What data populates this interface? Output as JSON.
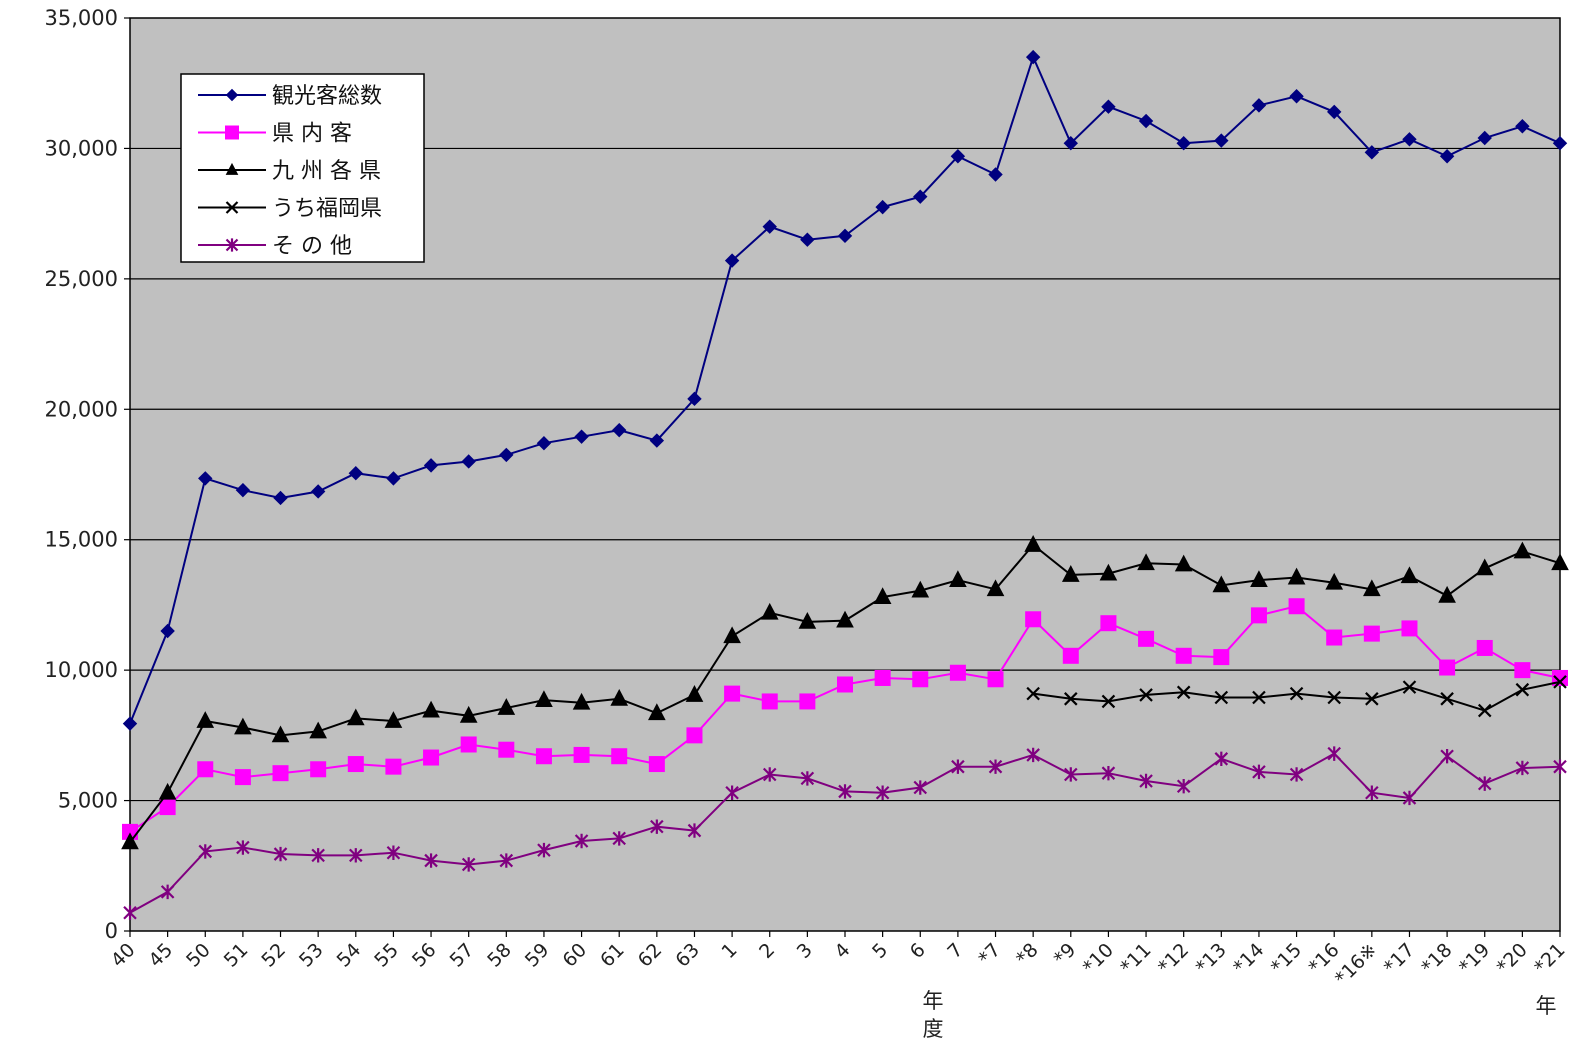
{
  "chart_data": {
    "type": "line",
    "title": "",
    "xlabel": "",
    "ylabel": "",
    "ylim": [
      0,
      35000
    ],
    "yticks": [
      0,
      5000,
      10000,
      15000,
      20000,
      25000,
      30000,
      35000
    ],
    "ytick_labels": [
      "0",
      "5,000",
      "10,000",
      "15,000",
      "20,000",
      "25,000",
      "30,000",
      "35,000"
    ],
    "grid": true,
    "legend_position": "top-left",
    "x_unit_labels": [
      "年度",
      "年"
    ],
    "categories": [
      "40",
      "45",
      "50",
      "51",
      "52",
      "53",
      "54",
      "55",
      "56",
      "57",
      "58",
      "59",
      "60",
      "61",
      "62",
      "63",
      "1",
      "2",
      "3",
      "4",
      "5",
      "6",
      "7",
      "*7",
      "*8",
      "*9",
      "*10",
      "*11",
      "*12",
      "*13",
      "*14",
      "*15",
      "*16",
      "*16※",
      "*17",
      "*18",
      "*19",
      "*20",
      "*21"
    ],
    "series": [
      {
        "name": "観光客総数",
        "color": "#000080",
        "marker": "diamond",
        "values": [
          7950,
          11500,
          17350,
          16900,
          16600,
          16850,
          17550,
          17350,
          17850,
          18000,
          18250,
          18700,
          18950,
          19200,
          18800,
          20400,
          25700,
          27000,
          26500,
          26650,
          27750,
          28150,
          29700,
          29000,
          33500,
          30200,
          31600,
          31050,
          30200,
          30300,
          31650,
          32000,
          31400,
          29850,
          30350,
          29700,
          30400,
          30850,
          30200
        ]
      },
      {
        "name": "県 内 客",
        "color": "#ff00ff",
        "marker": "square",
        "values": [
          3800,
          4750,
          6200,
          5900,
          6050,
          6200,
          6400,
          6300,
          6650,
          7150,
          6950,
          6700,
          6750,
          6700,
          6400,
          7500,
          9100,
          8800,
          8800,
          9450,
          9700,
          9650,
          9900,
          9650,
          11950,
          10550,
          11800,
          11200,
          10550,
          10500,
          12100,
          12450,
          11250,
          11400,
          11600,
          10100,
          10850,
          10000,
          9700
        ]
      },
      {
        "name": "九 州 各 県",
        "color": "#000000",
        "marker": "triangle",
        "values": [
          3400,
          5300,
          8050,
          7800,
          7500,
          7650,
          8150,
          8050,
          8450,
          8250,
          8550,
          8850,
          8750,
          8900,
          8350,
          9050,
          11300,
          12200,
          11850,
          11900,
          12800,
          13050,
          13450,
          13100,
          14800,
          13650,
          13700,
          14100,
          14050,
          13250,
          13450,
          13550,
          13350,
          13100,
          13600,
          12850,
          13900,
          14550,
          14100
        ]
      },
      {
        "name": "うち福岡県",
        "color": "#000000",
        "marker": "x",
        "values": [
          null,
          null,
          null,
          null,
          null,
          null,
          null,
          null,
          null,
          null,
          null,
          null,
          null,
          null,
          null,
          null,
          null,
          null,
          null,
          null,
          null,
          null,
          null,
          null,
          9100,
          8900,
          8800,
          9050,
          9150,
          8950,
          8950,
          9100,
          8950,
          8900,
          9350,
          8900,
          8450,
          9250,
          9550
        ]
      },
      {
        "name": "そ の 他",
        "color": "#800080",
        "marker": "asterisk",
        "values": [
          700,
          1500,
          3050,
          3200,
          2950,
          2900,
          2900,
          3000,
          2700,
          2550,
          2700,
          3100,
          3450,
          3550,
          4000,
          3850,
          5300,
          6000,
          5850,
          5350,
          5300,
          5500,
          6300,
          6300,
          6750,
          6000,
          6050,
          5750,
          5550,
          6600,
          6100,
          6000,
          6800,
          5300,
          5100,
          6700,
          5650,
          6250,
          6300
        ]
      }
    ]
  }
}
